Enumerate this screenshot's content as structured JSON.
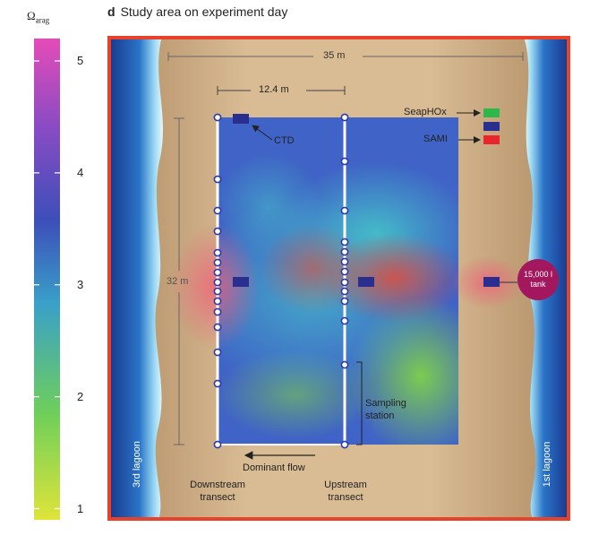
{
  "colorbar": {
    "title": "Ω",
    "title_sub": "arag",
    "ticks": [
      "5",
      "4",
      "3",
      "2",
      "1"
    ],
    "tick_values": [
      5,
      4,
      3,
      2,
      1
    ],
    "range": [
      0.9,
      5.2
    ],
    "colors": [
      "#e64bb8",
      "#8b4bc4",
      "#3c4fba",
      "#39a0c8",
      "#6fcf5a",
      "#dfe43a"
    ]
  },
  "panel": {
    "letter": "d",
    "title": "Study area on experiment day"
  },
  "dimensions": {
    "width_total": "35 m",
    "transect_spacing": "12.4 m",
    "length": "32 m"
  },
  "legend": {
    "seaphox": "SeapHOx",
    "sami": "SAMI",
    "ctd": "CTD",
    "seaphox_color": "#2fb84a",
    "ctd_color": "#2a2e8f",
    "sami_color": "#e8262b"
  },
  "labels": {
    "tank_line1": "15,000 l",
    "tank_line2": "tank",
    "sampling_line1": "Sampling",
    "sampling_line2": "station",
    "dominant_flow": "Dominant flow",
    "downstream_line1": "Downstream",
    "downstream_line2": "transect",
    "upstream_line1": "Upstream",
    "upstream_line2": "transect",
    "left_lagoon": "3rd lagoon",
    "right_lagoon": "1st lagoon"
  },
  "colors": {
    "frame": "#e8432a",
    "sand": "#c9a77d",
    "tank": "#a3175f"
  }
}
